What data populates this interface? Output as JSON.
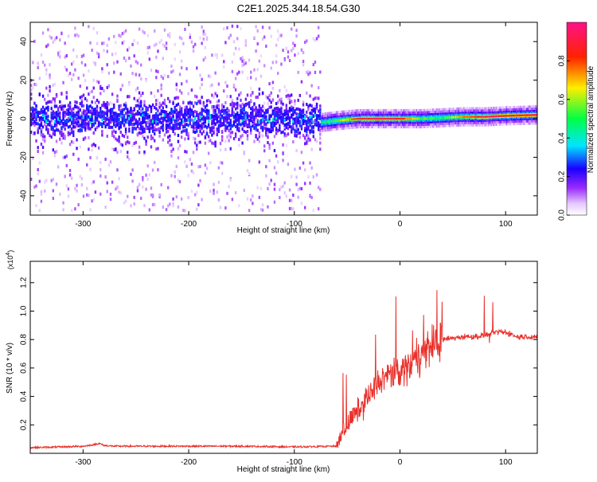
{
  "title": "C2E1.2025.344.18.54.G30",
  "chart_data": [
    {
      "type": "heatmap",
      "title": "C2E1.2025.344.18.54.G30",
      "xlabel": "Height of straight line (km)",
      "ylabel": "Frequency (Hz)",
      "xlim": [
        -350,
        130
      ],
      "ylim": [
        -50,
        50
      ],
      "xticks": [
        -300,
        -200,
        -100,
        0,
        100
      ],
      "xtick_labels": [
        "-300",
        "-200",
        "-100",
        "0",
        "100"
      ],
      "yticks": [
        -40,
        -20,
        0,
        20,
        40
      ],
      "ytick_labels": [
        "-40",
        "-20",
        "0",
        "20",
        "40"
      ],
      "colorbar": {
        "label": "Normalized spectral amplitude",
        "range": [
          0,
          1
        ],
        "ticks": [
          0.0,
          0.2,
          0.4,
          0.6,
          0.8
        ],
        "tick_labels": [
          "0.0",
          "0.2",
          "0.4",
          "0.6",
          "0.8"
        ],
        "colors": [
          "#ffffff",
          "#9b2cff",
          "#1a00ff",
          "#00e5ff",
          "#00ff44",
          "#ffee00",
          "#ff2200",
          "#ff1188"
        ]
      },
      "noise_region": {
        "x_start": -350,
        "x_end": -75,
        "band_center_hz": 0,
        "band_halfwidth_hz": 10,
        "spread_hz": 48
      },
      "signal_track": [
        {
          "x": -75,
          "freq": -2,
          "amp": 0.45
        },
        {
          "x": -60,
          "freq": -1,
          "amp": 0.55
        },
        {
          "x": -40,
          "freq": 0,
          "amp": 0.85
        },
        {
          "x": -20,
          "freq": 0,
          "amp": 0.9
        },
        {
          "x": 0,
          "freq": 0,
          "amp": 0.85
        },
        {
          "x": 20,
          "freq": 0,
          "amp": 0.55
        },
        {
          "x": 40,
          "freq": 0.5,
          "amp": 0.5
        },
        {
          "x": 60,
          "freq": 1,
          "amp": 0.75
        },
        {
          "x": 80,
          "freq": 1,
          "amp": 0.9
        },
        {
          "x": 100,
          "freq": 1.5,
          "amp": 0.85
        },
        {
          "x": 130,
          "freq": 2,
          "amp": 0.9
        }
      ]
    },
    {
      "type": "line",
      "xlabel": "Height of straight line (km)",
      "ylabel": "SNR (10 * v/v)",
      "yscale_label": "(x10",
      "yscale_exp": "4",
      "yscale_close": ")",
      "xlim": [
        -350,
        130
      ],
      "ylim": [
        0,
        1.35
      ],
      "xticks": [
        -300,
        -200,
        -100,
        0,
        100
      ],
      "xtick_labels": [
        "-300",
        "-200",
        "-100",
        "0",
        "100"
      ],
      "yticks": [
        0.2,
        0.4,
        0.6,
        0.8,
        1.0,
        1.2
      ],
      "ytick_labels": [
        "0.2",
        "0.4",
        "0.6",
        "0.8",
        "1.0",
        "1.2"
      ],
      "color": "#e8302a",
      "series": [
        {
          "name": "SNR",
          "x": [
            -350,
            -320,
            -300,
            -290,
            -285,
            -280,
            -270,
            -250,
            -200,
            -150,
            -100,
            -60,
            -55,
            -50,
            -45,
            -40,
            -30,
            -20,
            -10,
            0,
            10,
            20,
            30,
            40,
            50,
            60,
            70,
            80,
            90,
            100,
            105,
            110,
            120,
            130
          ],
          "y": [
            0.04,
            0.045,
            0.05,
            0.06,
            0.07,
            0.055,
            0.05,
            0.05,
            0.05,
            0.05,
            0.045,
            0.05,
            0.15,
            0.2,
            0.25,
            0.3,
            0.4,
            0.5,
            0.55,
            0.58,
            0.62,
            0.7,
            0.76,
            0.8,
            0.81,
            0.82,
            0.82,
            0.83,
            0.85,
            0.85,
            0.84,
            0.82,
            0.82,
            0.82
          ]
        }
      ]
    }
  ]
}
